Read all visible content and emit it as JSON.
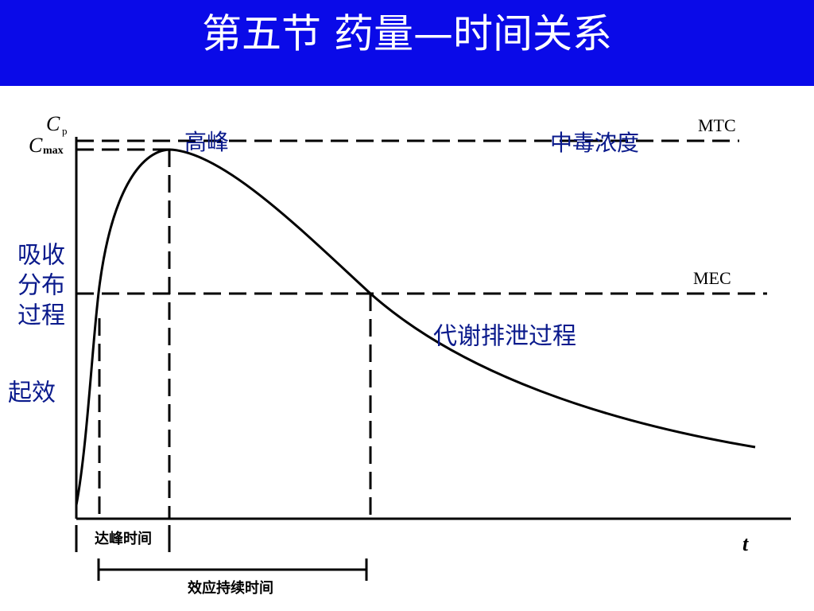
{
  "header": {
    "title": "第五节  药量—时间关系"
  },
  "axis": {
    "y_symbol": "C",
    "y_subscript": "p",
    "cmax_symbol": "C",
    "cmax_subscript": "max",
    "x_symbol": "t"
  },
  "labels": {
    "peak": "高峰",
    "toxic": "中毒浓度",
    "mtc": "MTC",
    "mec": "MEC",
    "absorption": [
      "吸收",
      "分布",
      "过程"
    ],
    "onset": "起效",
    "elimination": "代谢排泄过程"
  },
  "intervals": {
    "time_to_peak": "达峰时间",
    "duration": "效应持续时间"
  }
}
